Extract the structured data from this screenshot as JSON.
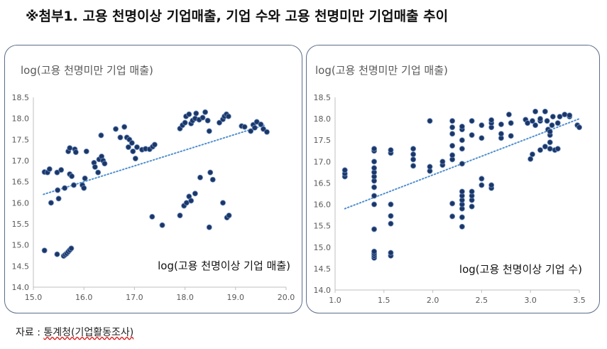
{
  "page": {
    "title": "※첨부1. 고용 천명이상 기업매출, 기업 수와 고용 천명미만 기업매출 추이",
    "source_prefix": "자료 : ",
    "source_name": "통계청(기업활동조사)"
  },
  "colors": {
    "marker": "#1c3766",
    "marker_stroke": "#6f8fc4",
    "trend": "#4f8fd0",
    "axis": "#bfbfbf",
    "label": "#595959"
  },
  "chart_data": [
    {
      "type": "scatter",
      "ylabel": "log(고용 천명미만 기업 매출)",
      "xlabel": "log(고용 천명이상 기업 매출)",
      "xlim": [
        15.0,
        20.0
      ],
      "ylim": [
        14.0,
        18.5
      ],
      "xticks": [
        "15.0",
        "16.0",
        "17.0",
        "18.0",
        "19.0",
        "20.0"
      ],
      "yticks": [
        "14.0",
        "14.5",
        "15.0",
        "15.5",
        "16.0",
        "16.5",
        "17.0",
        "17.5",
        "18.0",
        "18.5"
      ],
      "grid": false,
      "trendline": {
        "style": "dotted",
        "from": [
          15.2,
          16.2
        ],
        "to": [
          19.6,
          17.85
        ]
      },
      "points": [
        [
          15.22,
          14.87
        ],
        [
          15.47,
          14.78
        ],
        [
          15.6,
          14.74
        ],
        [
          15.63,
          14.77
        ],
        [
          15.66,
          14.8
        ],
        [
          15.69,
          14.84
        ],
        [
          15.72,
          14.88
        ],
        [
          15.75,
          14.92
        ],
        [
          15.22,
          16.73
        ],
        [
          15.28,
          16.72
        ],
        [
          15.32,
          16.8
        ],
        [
          15.47,
          16.72
        ],
        [
          15.55,
          16.78
        ],
        [
          15.35,
          16.0
        ],
        [
          15.5,
          16.1
        ],
        [
          15.48,
          16.3
        ],
        [
          15.62,
          16.35
        ],
        [
          15.72,
          16.68
        ],
        [
          15.76,
          16.63
        ],
        [
          15.69,
          17.22
        ],
        [
          15.72,
          17.3
        ],
        [
          15.82,
          17.27
        ],
        [
          15.84,
          17.2
        ],
        [
          15.8,
          16.42
        ],
        [
          15.97,
          16.42
        ],
        [
          16.0,
          16.35
        ],
        [
          16.02,
          16.58
        ],
        [
          16.05,
          17.22
        ],
        [
          16.2,
          16.95
        ],
        [
          16.22,
          16.85
        ],
        [
          16.28,
          16.72
        ],
        [
          16.3,
          17.03
        ],
        [
          16.35,
          17.1
        ],
        [
          16.38,
          17.0
        ],
        [
          16.41,
          16.93
        ],
        [
          16.34,
          17.6
        ],
        [
          16.63,
          17.75
        ],
        [
          16.72,
          17.55
        ],
        [
          16.8,
          17.8
        ],
        [
          16.85,
          17.55
        ],
        [
          16.9,
          17.5
        ],
        [
          16.88,
          17.32
        ],
        [
          16.95,
          17.42
        ],
        [
          16.97,
          17.22
        ],
        [
          17.02,
          17.05
        ],
        [
          17.05,
          17.32
        ],
        [
          17.15,
          17.26
        ],
        [
          17.22,
          17.28
        ],
        [
          17.3,
          17.27
        ],
        [
          17.36,
          17.33
        ],
        [
          17.4,
          17.38
        ],
        [
          17.35,
          15.67
        ],
        [
          17.55,
          15.47
        ],
        [
          17.9,
          15.7
        ],
        [
          17.98,
          15.93
        ],
        [
          18.03,
          16.0
        ],
        [
          18.08,
          16.15
        ],
        [
          18.12,
          16.05
        ],
        [
          18.2,
          16.22
        ],
        [
          18.3,
          16.6
        ],
        [
          18.5,
          16.72
        ],
        [
          18.55,
          16.55
        ],
        [
          18.48,
          15.42
        ],
        [
          18.75,
          16.0
        ],
        [
          18.83,
          15.65
        ],
        [
          18.87,
          15.7
        ],
        [
          17.9,
          17.76
        ],
        [
          17.95,
          17.84
        ],
        [
          18.0,
          17.9
        ],
        [
          18.02,
          18.05
        ],
        [
          18.08,
          18.1
        ],
        [
          18.12,
          17.88
        ],
        [
          18.15,
          17.95
        ],
        [
          18.2,
          18.0
        ],
        [
          18.22,
          18.12
        ],
        [
          18.28,
          17.97
        ],
        [
          18.35,
          18.02
        ],
        [
          18.4,
          18.15
        ],
        [
          18.45,
          17.95
        ],
        [
          18.48,
          17.7
        ],
        [
          18.68,
          17.9
        ],
        [
          18.75,
          17.98
        ],
        [
          18.78,
          18.05
        ],
        [
          18.82,
          18.1
        ],
        [
          18.86,
          18.05
        ],
        [
          19.12,
          17.82
        ],
        [
          19.18,
          17.8
        ],
        [
          19.3,
          17.7
        ],
        [
          19.35,
          17.85
        ],
        [
          19.38,
          17.78
        ],
        [
          19.42,
          17.92
        ],
        [
          19.5,
          17.86
        ],
        [
          19.55,
          17.75
        ],
        [
          19.62,
          17.68
        ]
      ]
    },
    {
      "type": "scatter",
      "ylabel": "log(고용 천명미만 기업 매출)",
      "xlabel": "log(고용 천명이상 기업 수)",
      "xlim": [
        1.0,
        3.5
      ],
      "ylim": [
        14.0,
        18.5
      ],
      "xticks": [
        "1.0",
        "1.5",
        "2.0",
        "2.5",
        "3.0",
        "3.5"
      ],
      "yticks": [
        "14.0",
        "14.5",
        "15.0",
        "15.5",
        "16.0",
        "16.5",
        "17.0",
        "17.5",
        "18.0",
        "18.5"
      ],
      "grid": false,
      "trendline": {
        "style": "dotted",
        "from": [
          1.1,
          15.9
        ],
        "to": [
          3.5,
          18.0
        ]
      },
      "points": [
        [
          1.1,
          16.65
        ],
        [
          1.1,
          16.72
        ],
        [
          1.1,
          16.8
        ],
        [
          1.4,
          14.75
        ],
        [
          1.4,
          14.8
        ],
        [
          1.4,
          14.85
        ],
        [
          1.4,
          14.9
        ],
        [
          1.4,
          15.42
        ],
        [
          1.4,
          16.0
        ],
        [
          1.4,
          16.2
        ],
        [
          1.4,
          16.4
        ],
        [
          1.4,
          16.55
        ],
        [
          1.4,
          16.65
        ],
        [
          1.4,
          16.75
        ],
        [
          1.4,
          16.85
        ],
        [
          1.4,
          17.0
        ],
        [
          1.4,
          17.25
        ],
        [
          1.4,
          17.3
        ],
        [
          1.57,
          14.8
        ],
        [
          1.57,
          14.87
        ],
        [
          1.57,
          15.55
        ],
        [
          1.57,
          15.73
        ],
        [
          1.57,
          16.0
        ],
        [
          1.57,
          17.2
        ],
        [
          1.57,
          17.27
        ],
        [
          1.8,
          16.9
        ],
        [
          1.8,
          17.05
        ],
        [
          1.8,
          17.17
        ],
        [
          1.8,
          17.3
        ],
        [
          1.97,
          16.78
        ],
        [
          1.97,
          16.88
        ],
        [
          1.97,
          17.95
        ],
        [
          2.1,
          16.92
        ],
        [
          2.1,
          17.0
        ],
        [
          2.2,
          15.72
        ],
        [
          2.2,
          16.02
        ],
        [
          2.2,
          17.05
        ],
        [
          2.2,
          17.15
        ],
        [
          2.2,
          17.37
        ],
        [
          2.2,
          17.65
        ],
        [
          2.2,
          17.8
        ],
        [
          2.2,
          17.95
        ],
        [
          2.3,
          15.48
        ],
        [
          2.3,
          15.7
        ],
        [
          2.3,
          15.9
        ],
        [
          2.3,
          16.0
        ],
        [
          2.3,
          16.1
        ],
        [
          2.3,
          16.2
        ],
        [
          2.3,
          16.3
        ],
        [
          2.3,
          16.95
        ],
        [
          2.3,
          17.3
        ],
        [
          2.3,
          17.5
        ],
        [
          2.3,
          17.75
        ],
        [
          2.3,
          17.82
        ],
        [
          2.4,
          15.95
        ],
        [
          2.4,
          16.1
        ],
        [
          2.4,
          16.2
        ],
        [
          2.4,
          16.3
        ],
        [
          2.4,
          17.62
        ],
        [
          2.4,
          17.95
        ],
        [
          2.5,
          16.45
        ],
        [
          2.5,
          16.6
        ],
        [
          2.5,
          17.55
        ],
        [
          2.5,
          17.85
        ],
        [
          2.6,
          16.38
        ],
        [
          2.6,
          16.45
        ],
        [
          2.6,
          17.8
        ],
        [
          2.6,
          17.9
        ],
        [
          2.6,
          17.97
        ],
        [
          2.7,
          17.55
        ],
        [
          2.7,
          17.65
        ],
        [
          2.7,
          17.87
        ],
        [
          2.8,
          17.6
        ],
        [
          2.8,
          17.9
        ],
        [
          2.78,
          18.1
        ],
        [
          2.95,
          17.98
        ],
        [
          2.97,
          17.9
        ],
        [
          3.0,
          17.06
        ],
        [
          3.02,
          17.17
        ],
        [
          3.02,
          17.95
        ],
        [
          3.05,
          17.85
        ],
        [
          3.05,
          18.17
        ],
        [
          3.1,
          17.27
        ],
        [
          3.1,
          17.95
        ],
        [
          3.1,
          18.0
        ],
        [
          3.15,
          17.35
        ],
        [
          3.15,
          18.17
        ],
        [
          3.17,
          17.95
        ],
        [
          3.18,
          17.75
        ],
        [
          3.2,
          17.3
        ],
        [
          3.2,
          17.45
        ],
        [
          3.2,
          17.62
        ],
        [
          3.2,
          17.7
        ],
        [
          3.22,
          17.85
        ],
        [
          3.23,
          18.05
        ],
        [
          3.25,
          17.27
        ],
        [
          3.28,
          17.3
        ],
        [
          3.28,
          17.9
        ],
        [
          3.3,
          18.05
        ],
        [
          3.35,
          18.1
        ],
        [
          3.4,
          18.05
        ],
        [
          3.4,
          18.08
        ],
        [
          3.48,
          17.85
        ],
        [
          3.5,
          17.8
        ]
      ]
    }
  ]
}
